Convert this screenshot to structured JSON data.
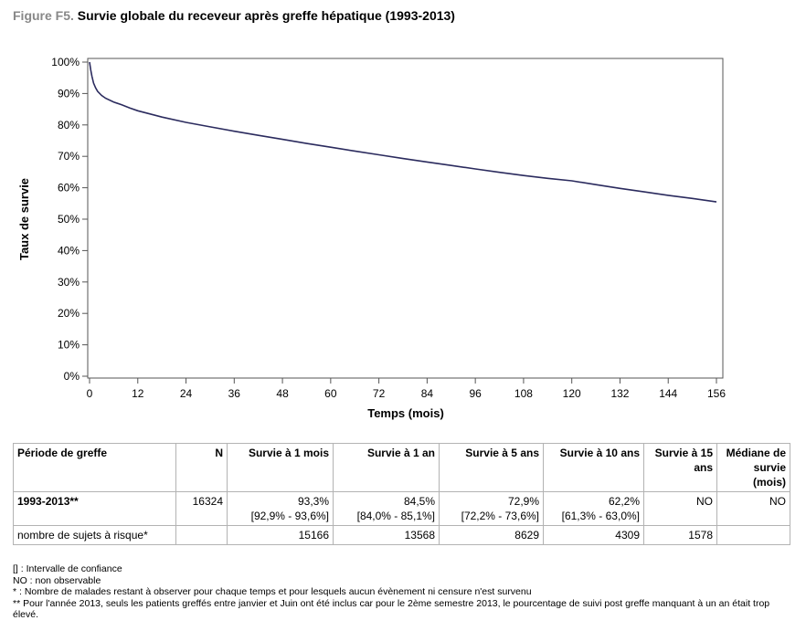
{
  "figure": {
    "prefix": "Figure F5.",
    "title": "Survie globale du receveur après greffe hépatique (1993-2013)"
  },
  "chart_data": {
    "type": "line",
    "xlabel": "Temps (mois)",
    "ylabel": "Taux de survie",
    "xlim": [
      0,
      156
    ],
    "ylim": [
      0,
      100
    ],
    "x_ticks": [
      0,
      12,
      24,
      36,
      48,
      60,
      72,
      84,
      96,
      108,
      120,
      132,
      144,
      156
    ],
    "y_ticks": [
      "0%",
      "10%",
      "20%",
      "30%",
      "40%",
      "50%",
      "60%",
      "70%",
      "80%",
      "90%",
      "100%"
    ],
    "y_tick_values": [
      0,
      10,
      20,
      30,
      40,
      50,
      60,
      70,
      80,
      90,
      100
    ],
    "grid": false,
    "line_color": "#2b2b5e",
    "series": [
      {
        "x": [
          0,
          0.3,
          0.6,
          1,
          1.5,
          2,
          3,
          4,
          6,
          8,
          10,
          12,
          18,
          24,
          30,
          36,
          42,
          48,
          54,
          60,
          66,
          72,
          78,
          84,
          90,
          96,
          102,
          108,
          114,
          120,
          126,
          132,
          138,
          144,
          150,
          156
        ],
        "y": [
          100,
          97.5,
          95.5,
          93.3,
          91.8,
          90.7,
          89.4,
          88.5,
          87.3,
          86.4,
          85.4,
          84.5,
          82.5,
          80.8,
          79.4,
          78.0,
          76.7,
          75.4,
          74.1,
          72.9,
          71.7,
          70.5,
          69.3,
          68.2,
          67.1,
          66.0,
          64.9,
          63.9,
          63.0,
          62.2,
          61.0,
          59.8,
          58.7,
          57.6,
          56.6,
          55.5
        ]
      }
    ]
  },
  "table": {
    "headers": [
      "Période de greffe",
      "N",
      "Survie à 1 mois",
      "Survie à 1 an",
      "Survie à 5 ans",
      "Survie à 10 ans",
      "Survie à 15 ans",
      "Médiane de survie (mois)"
    ],
    "row1": {
      "period": "1993-2013**",
      "n": "16324",
      "s1m": "93,3%",
      "s1m_ci": "[92,9% - 93,6%]",
      "s1y": "84,5%",
      "s1y_ci": "[84,0% - 85,1%]",
      "s5y": "72,9%",
      "s5y_ci": "[72,2% - 73,6%]",
      "s10y": "62,2%",
      "s10y_ci": "[61,3% - 63,0%]",
      "s15y": "NO",
      "median": "NO"
    },
    "row2": {
      "label": "nombre de sujets à risque*",
      "n": "",
      "s1m": "15166",
      "s1y": "13568",
      "s5y": "8629",
      "s10y": "4309",
      "s15y": "1578",
      "median": ""
    }
  },
  "notes": [
    " [] : Intervalle de confiance",
    "NO : non observable",
    "* : Nombre de malades restant à observer pour chaque temps et pour lesquels aucun évènement ni censure n'est survenu",
    "** Pour l'année 2013, seuls les patients greffés entre janvier et Juin ont été inclus car pour le 2ème semestre 2013, le pourcentage de suivi post greffe manquant à un an était trop élevé."
  ]
}
